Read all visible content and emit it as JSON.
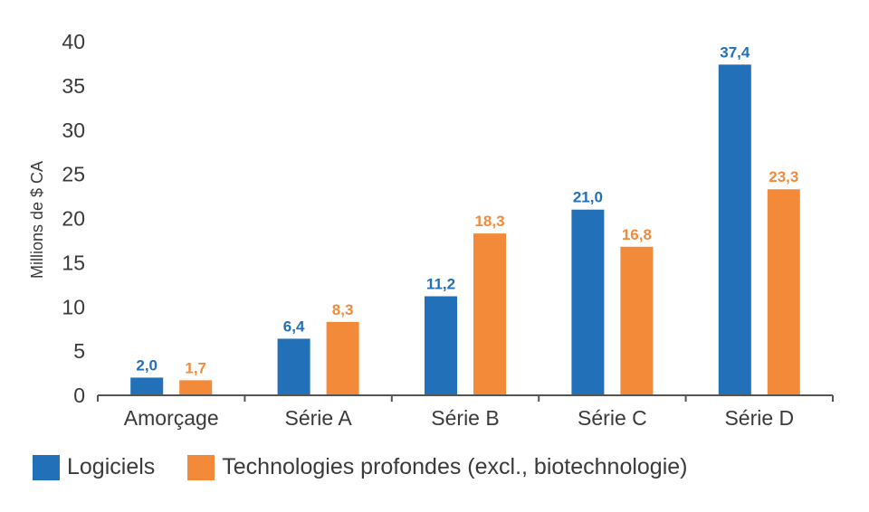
{
  "chart_data": {
    "type": "bar",
    "ylabel": "Millions de $ CA",
    "ylim": [
      0,
      40
    ],
    "yticks": [
      0,
      5,
      10,
      15,
      20,
      25,
      30,
      35,
      40
    ],
    "categories": [
      "Amorçage",
      "Série A",
      "Série B",
      "Série C",
      "Série D"
    ],
    "series": [
      {
        "name": "Logiciels",
        "color": "#2170b8",
        "values": [
          2.0,
          6.4,
          11.2,
          21.0,
          37.4
        ],
        "labels": [
          "2,0",
          "6,4",
          "11,2",
          "21,0",
          "37,4"
        ]
      },
      {
        "name": "Technologies profondes (excl., biotechnologie)",
        "color": "#f28a3a",
        "values": [
          1.7,
          8.3,
          18.3,
          16.8,
          23.3
        ],
        "labels": [
          "1,7",
          "8,3",
          "18,3",
          "16,8",
          "23,3"
        ]
      }
    ],
    "grid": false,
    "legend_position": "bottom-left"
  }
}
